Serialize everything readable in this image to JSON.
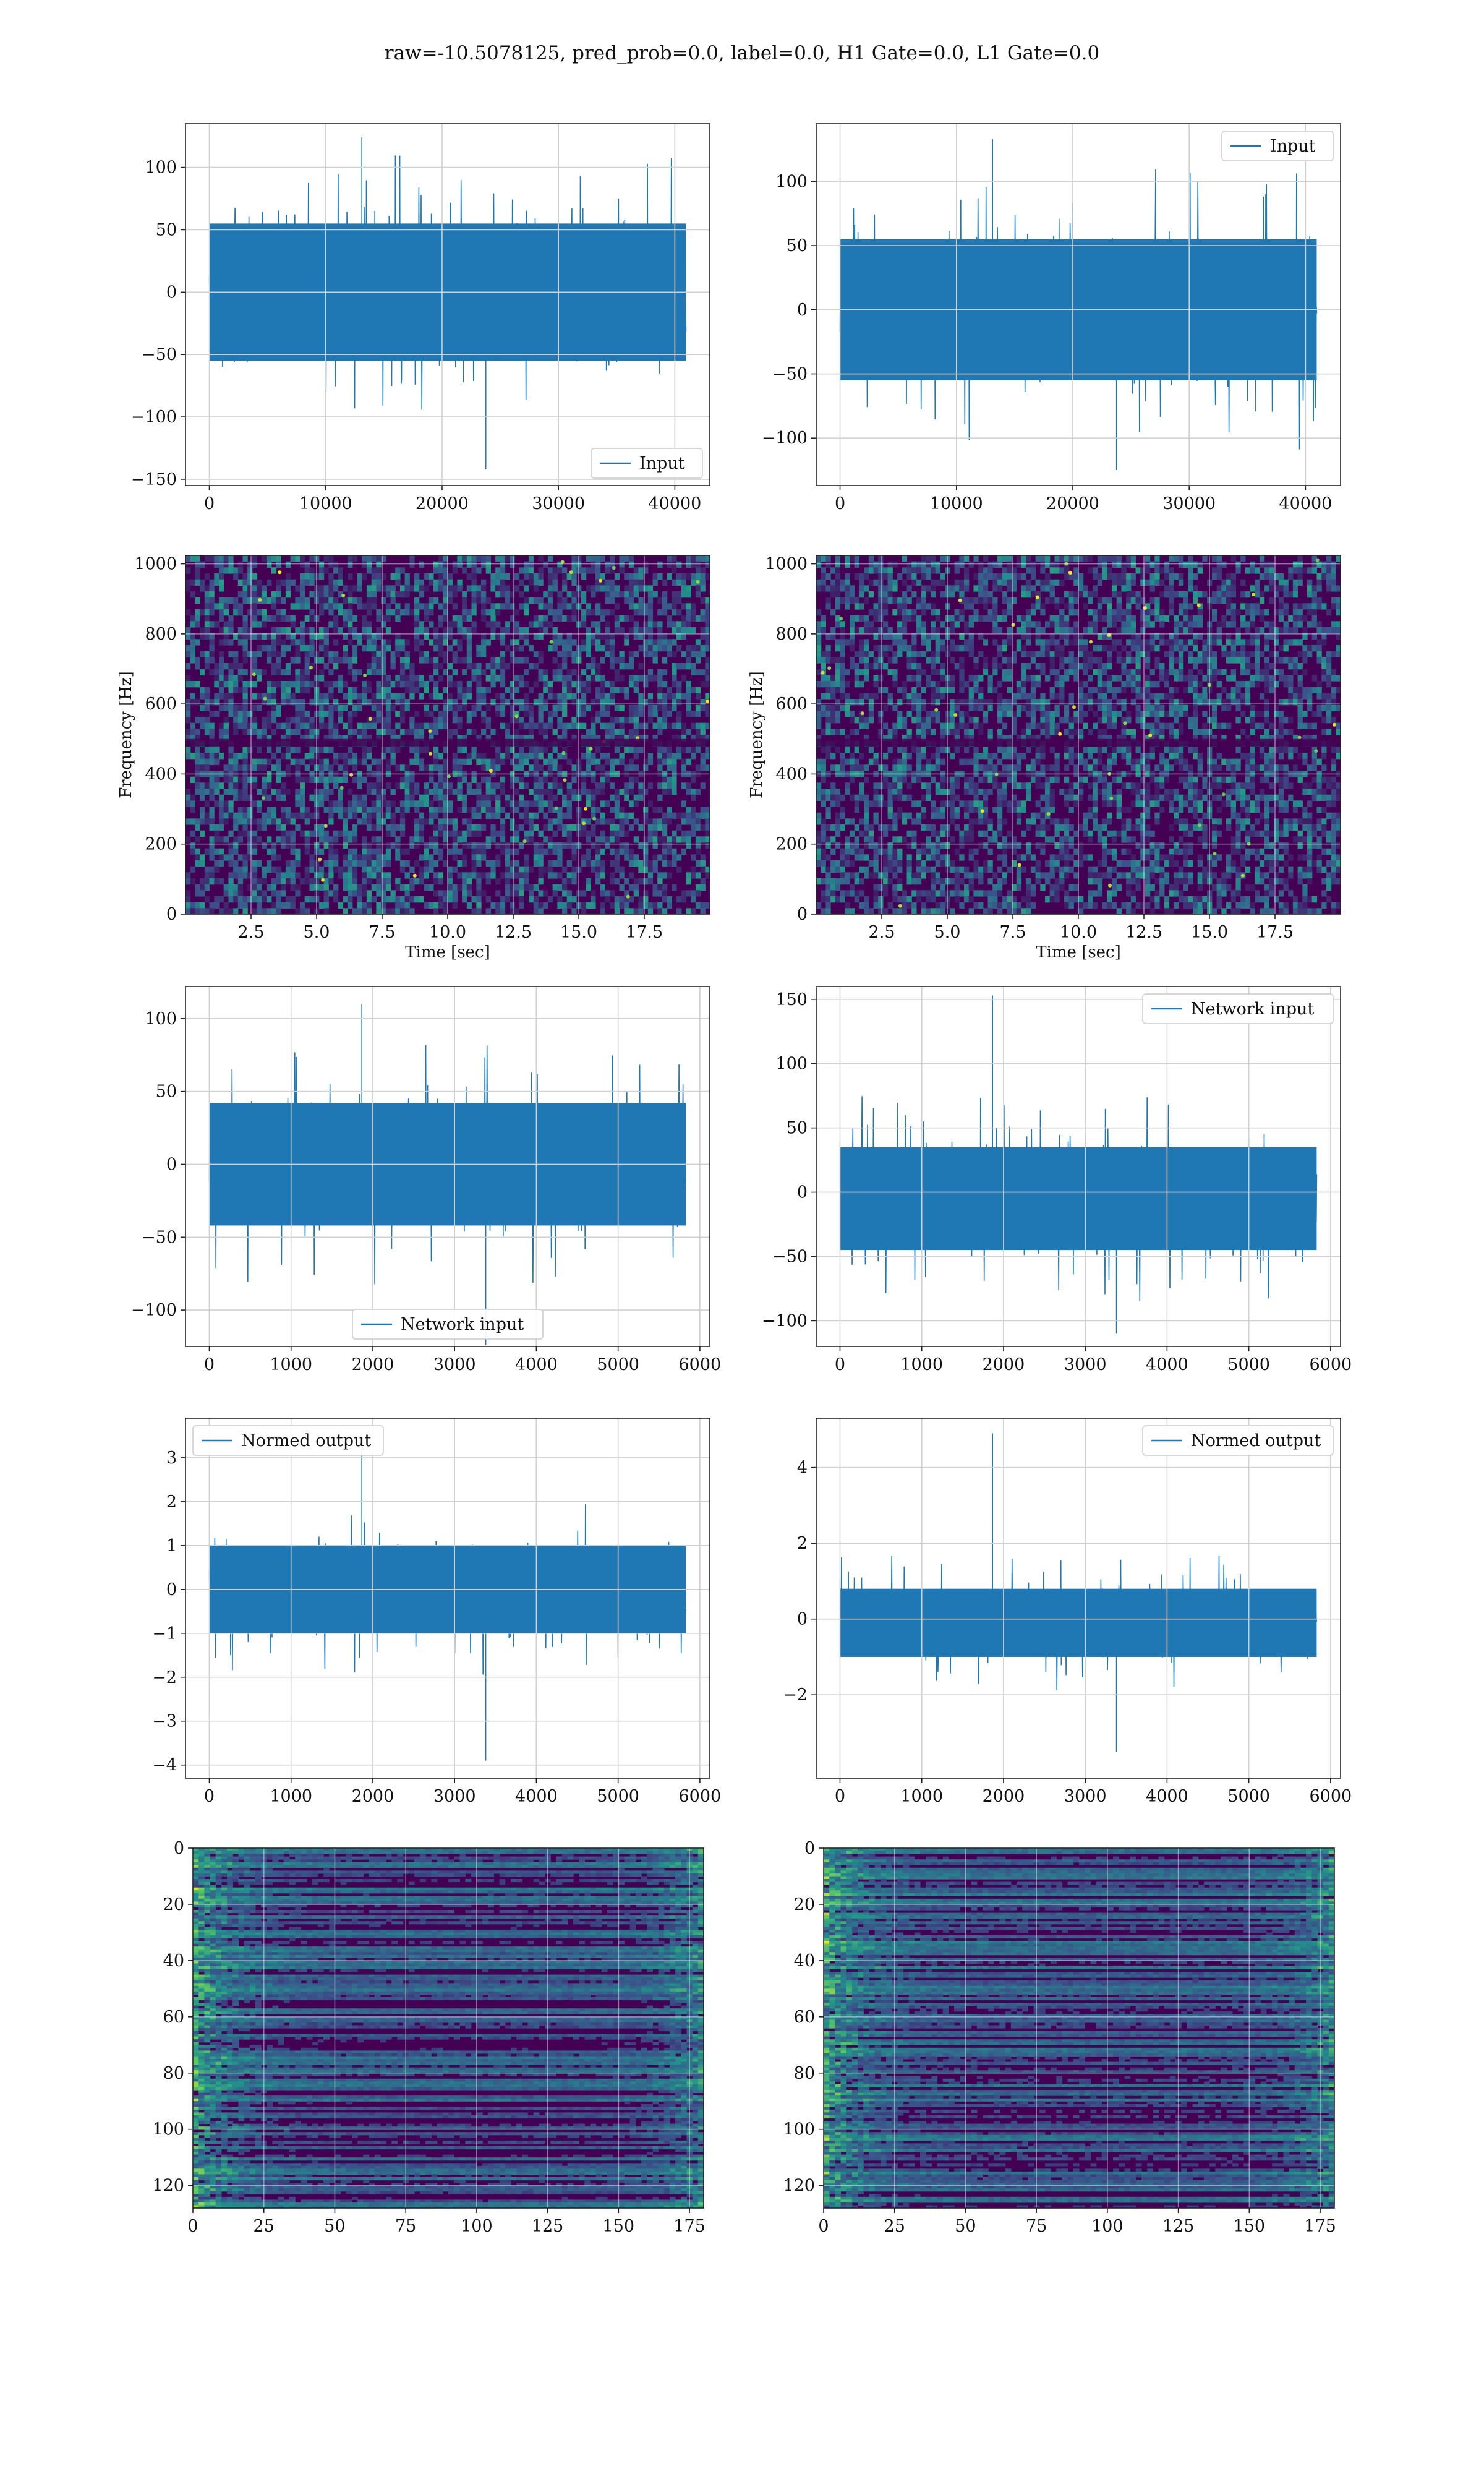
{
  "figure": {
    "title": "raw=-10.5078125, pred_prob=0.0, label=0.0, H1 Gate=0.0, L1 Gate=0.0"
  },
  "colors": {
    "series": "#1f77b4",
    "grid": "#d0d0d0",
    "viridis_low": "#440154",
    "viridis_mid": "#21908d",
    "viridis_high": "#fde725"
  },
  "chart_data": [
    {
      "id": "input-left",
      "type": "line",
      "legend": "Input",
      "legend_loc": "bottom-right",
      "series": [
        {
          "name": "Input",
          "envelope": {
            "x_start": 0,
            "x_end": 40960,
            "band": [
              -55,
              55
            ],
            "spike_max": 124,
            "spike_min": -142,
            "mean": 0
          }
        }
      ],
      "xlim": [
        -2048,
        43008
      ],
      "ylim": [
        -155,
        135
      ],
      "xticks": [
        0,
        10000,
        20000,
        30000,
        40000
      ],
      "yticks": [
        -150,
        -100,
        -50,
        0,
        50,
        100
      ],
      "grid": true
    },
    {
      "id": "input-right",
      "type": "line",
      "legend": "Input",
      "legend_loc": "top-right",
      "series": [
        {
          "name": "Input",
          "envelope": {
            "x_start": 0,
            "x_end": 40960,
            "band": [
              -55,
              55
            ],
            "spike_max": 133,
            "spike_min": -125,
            "mean": 0
          }
        }
      ],
      "xlim": [
        -2048,
        43008
      ],
      "ylim": [
        -137,
        145
      ],
      "xticks": [
        0,
        10000,
        20000,
        30000,
        40000
      ],
      "yticks": [
        -100,
        -50,
        0,
        50,
        100
      ],
      "grid": true
    },
    {
      "id": "spectrogram-left",
      "type": "heatmap",
      "xlabel": "Time [sec]",
      "ylabel": "Frequency [Hz]",
      "xlim": [
        0,
        20
      ],
      "ylim": [
        0,
        1024
      ],
      "xticks": [
        2.5,
        5.0,
        7.5,
        10.0,
        12.5,
        15.0,
        17.5
      ],
      "xticklabels": [
        "2.5",
        "5.0",
        "7.5",
        "10.0",
        "12.5",
        "15.0",
        "17.5"
      ],
      "yticks": [
        0,
        200,
        400,
        600,
        800,
        1000
      ],
      "colormap": "viridis",
      "dark_band_hz": 490,
      "grid": true
    },
    {
      "id": "spectrogram-right",
      "type": "heatmap",
      "xlabel": "Time [sec]",
      "ylabel": "Frequency [Hz]",
      "xlim": [
        0,
        20
      ],
      "ylim": [
        0,
        1024
      ],
      "xticks": [
        2.5,
        5.0,
        7.5,
        10.0,
        12.5,
        15.0,
        17.5
      ],
      "xticklabels": [
        "2.5",
        "5.0",
        "7.5",
        "10.0",
        "12.5",
        "15.0",
        "17.5"
      ],
      "yticks": [
        0,
        200,
        400,
        600,
        800,
        1000
      ],
      "colormap": "viridis",
      "dark_band_hz": 490,
      "grid": true
    },
    {
      "id": "network-left",
      "type": "line",
      "legend": "Network input",
      "legend_loc": "bottom-center",
      "series": [
        {
          "name": "Network input",
          "envelope": {
            "x_start": 0,
            "x_end": 5830,
            "band": [
              -42,
              42
            ],
            "spike_max": 110,
            "spike_min": -124,
            "mean": 0
          }
        }
      ],
      "xlim": [
        -291,
        6122
      ],
      "ylim": [
        -125,
        122
      ],
      "xticks": [
        0,
        1000,
        2000,
        3000,
        4000,
        5000,
        6000
      ],
      "yticks": [
        -100,
        -50,
        0,
        50,
        100
      ],
      "grid": true
    },
    {
      "id": "network-right",
      "type": "line",
      "legend": "Network input",
      "legend_loc": "top-right",
      "series": [
        {
          "name": "Network input",
          "envelope": {
            "x_start": 0,
            "x_end": 5830,
            "band": [
              -40,
              40
            ],
            "spike_max": 153,
            "spike_min": -110,
            "mean": -5
          }
        }
      ],
      "xlim": [
        -291,
        6122
      ],
      "ylim": [
        -120,
        160
      ],
      "xticks": [
        0,
        1000,
        2000,
        3000,
        4000,
        5000,
        6000
      ],
      "yticks": [
        -100,
        -50,
        0,
        50,
        100,
        150
      ],
      "grid": true
    },
    {
      "id": "normed-left",
      "type": "line",
      "legend": "Normed output",
      "legend_loc": "top-left",
      "series": [
        {
          "name": "Normed output",
          "envelope": {
            "x_start": 0,
            "x_end": 5830,
            "band": [
              -1.0,
              1.0
            ],
            "spike_max": 3.3,
            "spike_min": -3.9,
            "mean": 0
          }
        }
      ],
      "xlim": [
        -291,
        6122
      ],
      "ylim": [
        -4.3,
        3.9
      ],
      "xticks": [
        0,
        1000,
        2000,
        3000,
        4000,
        5000,
        6000
      ],
      "yticks": [
        -4,
        -3,
        -2,
        -1,
        0,
        1,
        2,
        3
      ],
      "grid": true
    },
    {
      "id": "normed-right",
      "type": "line",
      "legend": "Normed output",
      "legend_loc": "top-right",
      "series": [
        {
          "name": "Normed output",
          "envelope": {
            "x_start": 0,
            "x_end": 5830,
            "band": [
              -0.9,
              0.9
            ],
            "spike_max": 4.9,
            "spike_min": -3.5,
            "mean": -0.1
          }
        }
      ],
      "xlim": [
        -291,
        6122
      ],
      "ylim": [
        -4.2,
        5.3
      ],
      "xticks": [
        0,
        1000,
        2000,
        3000,
        4000,
        5000,
        6000
      ],
      "yticks": [
        -2,
        0,
        2,
        4
      ],
      "grid": true
    },
    {
      "id": "feature-left",
      "type": "heatmap",
      "colormap": "viridis",
      "xlim": [
        0,
        180
      ],
      "ylim": [
        128,
        0
      ],
      "xticks": [
        0,
        25,
        50,
        75,
        100,
        125,
        150,
        175
      ],
      "yticks": [
        0,
        20,
        40,
        60,
        80,
        100,
        120
      ],
      "rows": 128,
      "cols": 180,
      "grid": true
    },
    {
      "id": "feature-right",
      "type": "heatmap",
      "colormap": "viridis",
      "xlim": [
        0,
        180
      ],
      "ylim": [
        128,
        0
      ],
      "xticks": [
        0,
        25,
        50,
        75,
        100,
        125,
        150,
        175
      ],
      "yticks": [
        0,
        20,
        40,
        60,
        80,
        100,
        120
      ],
      "rows": 128,
      "cols": 180,
      "grid": true
    }
  ]
}
